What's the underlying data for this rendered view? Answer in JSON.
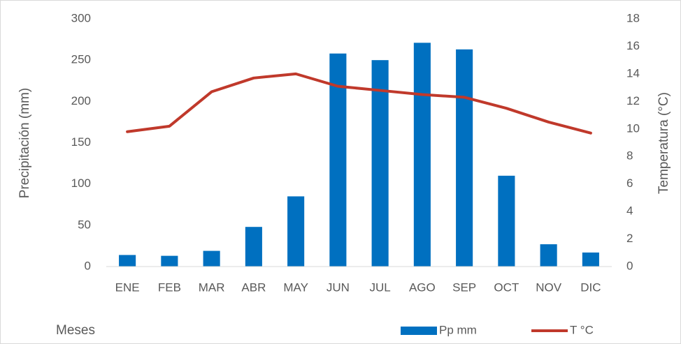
{
  "chart_data": {
    "type": "bar-line",
    "categories": [
      "ENE",
      "FEB",
      "MAR",
      "ABR",
      "MAY",
      "JUN",
      "JUL",
      "AGO",
      "SEP",
      "OCT",
      "NOV",
      "DIC"
    ],
    "series": [
      {
        "name": "Pp mm",
        "color": "#0070c0",
        "type": "bar",
        "values": [
          14,
          13,
          19,
          48,
          85,
          258,
          250,
          271,
          263,
          110,
          27,
          17
        ]
      },
      {
        "name": "T °C",
        "color": "#c0392b",
        "type": "line",
        "axis": "y2",
        "values": [
          9.8,
          10.2,
          12.7,
          13.7,
          14.0,
          13.1,
          12.8,
          12.5,
          12.3,
          11.5,
          10.5,
          9.7
        ]
      }
    ],
    "ylabel": "Precipitación (mm)",
    "y2label": "Temperatura (°C)",
    "xlabel": "Meses",
    "ylim": [
      0,
      300
    ],
    "yticks": [
      0,
      50,
      100,
      150,
      200,
      250,
      300
    ],
    "y2lim": [
      0,
      18
    ],
    "y2ticks": [
      0,
      2,
      4,
      6,
      8,
      10,
      12,
      14,
      16,
      18
    ],
    "legend": "bottom-right"
  }
}
